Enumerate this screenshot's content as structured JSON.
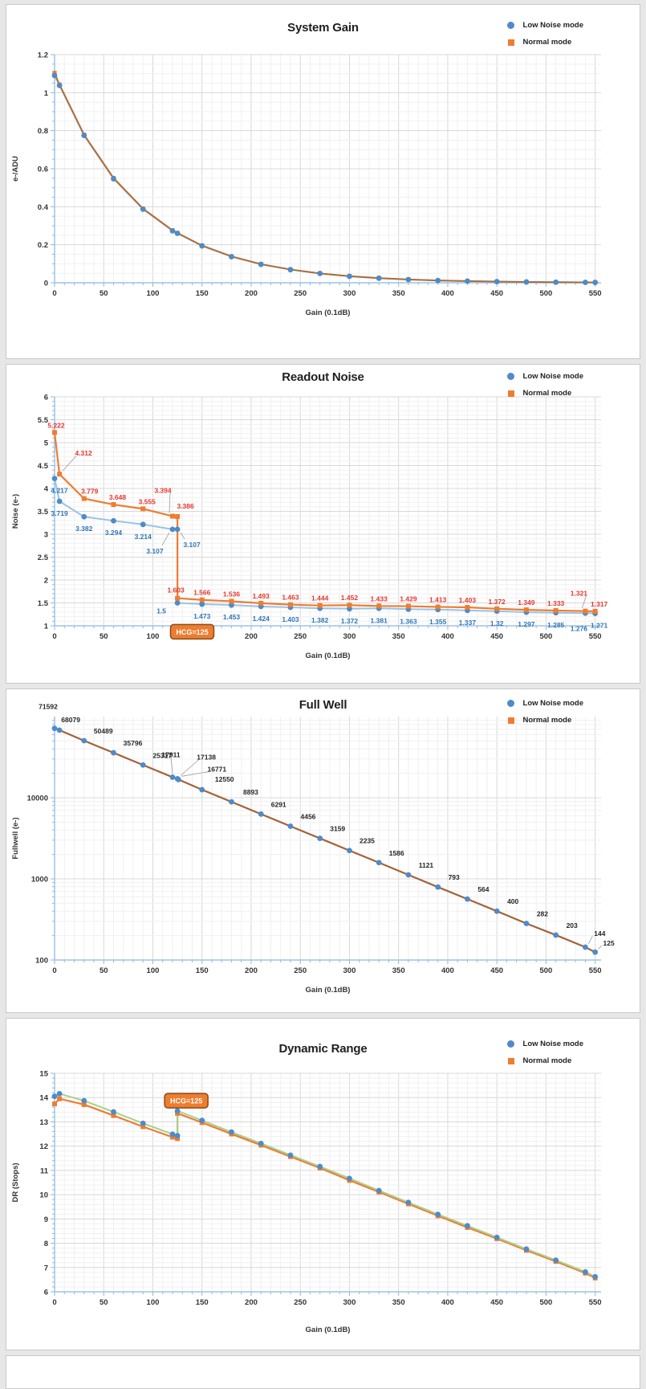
{
  "colors": {
    "low_noise_marker": "#4e8bc8",
    "normal_marker": "#ed7d31",
    "readout_low_line": "#9cc3e5",
    "dr_low_line": "#a9d08e",
    "overlap_line_brown": "#c87a3e",
    "red_label": "#e7362e",
    "blue_label": "#2e75b6",
    "black_label": "#262626"
  },
  "chart_data": [
    {
      "type": "line",
      "title": "System Gain",
      "xlabel": "Gain (0.1dB)",
      "ylabel": "e-/ADU",
      "legend": {
        "low": "Low Noise mode",
        "normal": "Normal mode"
      },
      "xlim": [
        0,
        556
      ],
      "xmajor": 50,
      "xminor": 10,
      "xtick_max": 550,
      "ylim": [
        0,
        1.2
      ],
      "ymajor": 0.2,
      "yminor": 0.05,
      "plot": {
        "l": 60,
        "t": 62,
        "r": 741,
        "b": 346
      },
      "xtitle_dy": 40,
      "series": [
        {
          "name": "Normal mode",
          "marker": "square",
          "ms": 2.6,
          "mcolor": "#ed7d31",
          "line": "#c87a3e",
          "lw": 2,
          "x": [
            0,
            5,
            30,
            60,
            90,
            120,
            125,
            150,
            180,
            210,
            240,
            270,
            300,
            330,
            360,
            390,
            420,
            450,
            480,
            510,
            540,
            550
          ],
          "y": [
            1.104,
            1.043,
            0.779,
            0.551,
            0.39,
            0.276,
            0.262,
            0.196,
            0.139,
            0.098,
            0.07,
            0.049,
            0.035,
            0.025,
            0.0176,
            0.0124,
            0.0088,
            0.0062,
            0.0044,
            0.0031,
            0.0022,
            0.002
          ]
        },
        {
          "name": "Low Noise mode",
          "marker": "circle",
          "mcolor": "#4e8bc8",
          "line": "rgba(110,90,75,0.4)",
          "lw": 2,
          "x": [
            0,
            5,
            30,
            60,
            90,
            120,
            125,
            150,
            180,
            210,
            240,
            270,
            300,
            330,
            360,
            390,
            420,
            450,
            480,
            510,
            540,
            550
          ],
          "y": [
            1.09,
            1.038,
            0.775,
            0.547,
            0.387,
            0.273,
            0.26,
            0.194,
            0.137,
            0.097,
            0.069,
            0.049,
            0.034,
            0.024,
            0.017,
            0.012,
            0.0087,
            0.0061,
            0.0044,
            0.0031,
            0.0022,
            0.0019
          ]
        }
      ]
    },
    {
      "type": "line",
      "title": "Readout Noise",
      "xlabel": "Gain (0.1dB)",
      "ylabel": "Noise (e-)",
      "legend": {
        "low": "Low Noise mode",
        "normal": "Normal mode"
      },
      "xlim": [
        0,
        556
      ],
      "xmajor": 50,
      "xminor": 10,
      "xtick_max": 550,
      "ylim": [
        1,
        6
      ],
      "ymajor": 0.5,
      "yminor": 0.1,
      "plot": {
        "l": 60,
        "t": 40,
        "r": 741,
        "b": 325
      },
      "xtitle_dy": 40,
      "annotation": {
        "text": "HCG=125",
        "x": 140,
        "y": 0.87
      },
      "series": [
        {
          "name": "Low Noise mode",
          "marker": "circle",
          "mcolor": "#4e8bc8",
          "line": "#9cc3e5",
          "lw": 2,
          "labelColor": "#2e75b6",
          "x": [
            0,
            5,
            30,
            60,
            90,
            120,
            125,
            125,
            150,
            180,
            210,
            240,
            270,
            300,
            330,
            360,
            390,
            420,
            450,
            480,
            510,
            540,
            550
          ],
          "y": [
            4.217,
            3.719,
            3.382,
            3.294,
            3.214,
            3.107,
            3.107,
            1.5,
            1.473,
            1.453,
            1.424,
            1.403,
            1.382,
            1.372,
            1.381,
            1.363,
            1.355,
            1.337,
            1.32,
            1.297,
            1.285,
            1.276,
            1.271
          ],
          "labels": [
            {
              "t": "4.217",
              "dx": 6,
              "dy": 15
            },
            {
              "t": "3.719",
              "dx": 0,
              "dy": 15
            },
            {
              "t": "3.382",
              "dx": 0,
              "dy": 15
            },
            {
              "t": "3.294",
              "dx": 0,
              "dy": 15
            },
            {
              "t": "3.214",
              "dx": 0,
              "dy": 15
            },
            {
              "t": "3.107",
              "dx": -22,
              "dy": 27,
              "ld": true
            },
            {
              "t": "3.107",
              "dx": 18,
              "dy": 19,
              "ld": true
            },
            {
              "t": "1.5",
              "dx": -20,
              "dy": 10
            },
            {
              "t": "1.473",
              "dx": 0,
              "dy": 15
            },
            {
              "t": "1.453",
              "dx": 0,
              "dy": 15
            },
            {
              "t": "1.424",
              "dx": 0,
              "dy": 15
            },
            {
              "t": "1.403",
              "dx": 0,
              "dy": 15
            },
            {
              "t": "1.382",
              "dx": 0,
              "dy": 15
            },
            {
              "t": "1.372",
              "dx": 0,
              "dy": 15
            },
            {
              "t": "1.381",
              "dx": 0,
              "dy": 15
            },
            {
              "t": "1.363",
              "dx": 0,
              "dy": 15
            },
            {
              "t": "1.355",
              "dx": 0,
              "dy": 15
            },
            {
              "t": "1.337",
              "dx": 0,
              "dy": 15
            },
            {
              "t": "1.32",
              "dx": 0,
              "dy": 15
            },
            {
              "t": "1.297",
              "dx": 0,
              "dy": 15
            },
            {
              "t": "1.285",
              "dx": 0,
              "dy": 15
            },
            {
              "t": "1.276",
              "dx": -8,
              "dy": 19
            },
            {
              "t": "1.271",
              "dx": 5,
              "dy": 15
            }
          ]
        },
        {
          "name": "Normal mode",
          "marker": "square",
          "ms": 3,
          "mcolor": "#ed7d31",
          "line": "#ed7d31",
          "lw": 2.2,
          "labelColor": "#e7362e",
          "x": [
            0,
            5,
            30,
            60,
            90,
            120,
            125,
            125,
            150,
            180,
            210,
            240,
            270,
            300,
            330,
            360,
            390,
            420,
            450,
            480,
            510,
            540,
            550
          ],
          "y": [
            5.222,
            4.312,
            3.779,
            3.648,
            3.555,
            3.394,
            3.386,
            1.603,
            1.566,
            1.536,
            1.493,
            1.463,
            1.444,
            1.452,
            1.433,
            1.429,
            1.413,
            1.403,
            1.372,
            1.349,
            1.333,
            1.321,
            1.317
          ],
          "labels": [
            {
              "t": "5.222",
              "dx": 2,
              "dy": -9
            },
            {
              "t": "4.312",
              "dx": 30,
              "dy": -26,
              "ld": true
            },
            {
              "t": "3.779",
              "dx": 7,
              "dy": -9
            },
            {
              "t": "3.648",
              "dx": 5,
              "dy": -9
            },
            {
              "t": "3.555",
              "dx": 5,
              "dy": -9
            },
            {
              "t": "3.394",
              "dx": -12,
              "dy": -32,
              "ld": true
            },
            {
              "t": "3.386",
              "dx": 10,
              "dy": -13
            },
            {
              "t": "1.603",
              "dx": -2,
              "dy": -10
            },
            {
              "t": "1.566",
              "dx": 0,
              "dy": -9
            },
            {
              "t": "1.536",
              "dx": 0,
              "dy": -9
            },
            {
              "t": "1.493",
              "dx": 0,
              "dy": -9
            },
            {
              "t": "1.463",
              "dx": 0,
              "dy": -9
            },
            {
              "t": "1.444",
              "dx": 0,
              "dy": -9
            },
            {
              "t": "1.452",
              "dx": 0,
              "dy": -9
            },
            {
              "t": "1.433",
              "dx": 0,
              "dy": -9
            },
            {
              "t": "1.429",
              "dx": 0,
              "dy": -9
            },
            {
              "t": "1.413",
              "dx": 0,
              "dy": -9
            },
            {
              "t": "1.403",
              "dx": 0,
              "dy": -9
            },
            {
              "t": "1.372",
              "dx": 0,
              "dy": -9
            },
            {
              "t": "1.349",
              "dx": 0,
              "dy": -9
            },
            {
              "t": "1.333",
              "dx": 0,
              "dy": -9
            },
            {
              "t": "1.321",
              "dx": -8,
              "dy": -22,
              "ld": true
            },
            {
              "t": "1.317",
              "dx": 5,
              "dy": -9
            }
          ]
        }
      ]
    },
    {
      "type": "line",
      "title": "Full Well",
      "xlabel": "Gain (0.1dB)",
      "ylabel": "Fullwell (e-)",
      "legend": {
        "low": "Low Noise mode",
        "normal": "Normal mode"
      },
      "xlim": [
        0,
        556
      ],
      "xmajor": 50,
      "xminor": 10,
      "xtick_max": 550,
      "ylim": [
        100,
        100000
      ],
      "ylog": true,
      "plot": {
        "l": 60,
        "t": 34,
        "r": 741,
        "b": 337
      },
      "xtitle_dy": 40,
      "series": [
        {
          "name": "Normal mode",
          "marker": "square",
          "ms": 2.2,
          "mcolor": "#ed7d31",
          "line": "#bd6a35",
          "lw": 2.2,
          "x": [
            0,
            5,
            30,
            60,
            90,
            120,
            125,
            126,
            150,
            180,
            210,
            240,
            270,
            300,
            330,
            360,
            390,
            420,
            450,
            480,
            510,
            540,
            550
          ],
          "y": [
            71592,
            68079,
            50489,
            35796,
            25317,
            17911,
            17138,
            16771,
            12550,
            8893,
            6291,
            4456,
            3159,
            2235,
            1586,
            1121,
            793,
            564,
            400,
            282,
            203,
            144,
            125
          ]
        },
        {
          "name": "Low Noise mode",
          "marker": "circle",
          "mcolor": "#4e8bc8",
          "line": "rgba(110,90,75,0.35)",
          "lw": 2,
          "labelColor": "#262626",
          "x": [
            0,
            5,
            30,
            60,
            90,
            120,
            125,
            126,
            150,
            180,
            210,
            240,
            270,
            300,
            330,
            360,
            390,
            420,
            450,
            480,
            510,
            540,
            550
          ],
          "y": [
            71592,
            68079,
            50489,
            35796,
            25317,
            17911,
            17138,
            16771,
            12550,
            8893,
            6291,
            4456,
            3159,
            2235,
            1586,
            1121,
            793,
            564,
            400,
            282,
            203,
            144,
            125
          ],
          "labels": [
            {
              "t": "71592",
              "dx": -8,
              "dy": -27
            },
            {
              "t": "68079",
              "dx": 14,
              "dy": -13
            },
            {
              "t": "50489",
              "dx": 24,
              "dy": -12
            },
            {
              "t": "35796",
              "dx": 24,
              "dy": -12
            },
            {
              "t": "25317",
              "dx": 24,
              "dy": -12
            },
            {
              "t": "17911",
              "dx": -2,
              "dy": -28,
              "ld": true
            },
            {
              "t": "17138",
              "dx": 36,
              "dy": -27,
              "ld": true
            },
            {
              "t": "16771",
              "dx": 48,
              "dy": -13,
              "ld": true
            },
            {
              "t": "12550",
              "dx": 28,
              "dy": -13
            },
            {
              "t": "8893",
              "dx": 24,
              "dy": -12
            },
            {
              "t": "6291",
              "dx": 22,
              "dy": -12
            },
            {
              "t": "4456",
              "dx": 22,
              "dy": -12
            },
            {
              "t": "3159",
              "dx": 22,
              "dy": -12
            },
            {
              "t": "2235",
              "dx": 22,
              "dy": -12
            },
            {
              "t": "1586",
              "dx": 22,
              "dy": -12
            },
            {
              "t": "1121",
              "dx": 22,
              "dy": -12
            },
            {
              "t": "793",
              "dx": 20,
              "dy": -12
            },
            {
              "t": "564",
              "dx": 20,
              "dy": -12
            },
            {
              "t": "400",
              "dx": 20,
              "dy": -12
            },
            {
              "t": "282",
              "dx": 20,
              "dy": -12
            },
            {
              "t": "203",
              "dx": 20,
              "dy": -12
            },
            {
              "t": "144",
              "dx": 18,
              "dy": -17,
              "ld": true
            },
            {
              "t": "125",
              "dx": 17,
              "dy": -11,
              "ld": true
            }
          ]
        }
      ]
    },
    {
      "type": "line",
      "title": "Dynamic Range",
      "xlabel": "Gain (0.1dB)",
      "ylabel": "DR (Stops)",
      "legend": {
        "low": "Low Noise mode",
        "normal": "Normal mode"
      },
      "xlim": [
        0,
        556
      ],
      "xmajor": 50,
      "xminor": 10,
      "xtick_max": 550,
      "ylim": [
        6,
        15
      ],
      "ymajor": 1,
      "yminor": 0.2,
      "plot": {
        "l": 60,
        "t": 68,
        "r": 741,
        "b": 340
      },
      "xtitle_dy": 50,
      "annotation": {
        "text": "HCG=125",
        "x": 134,
        "y": 13.87
      },
      "series": [
        {
          "name": "Normal mode",
          "marker": "square",
          "ms": 3,
          "mcolor": "#ed7d31",
          "line": "#ed7d31",
          "lw": 2.2,
          "x": [
            0,
            5,
            30,
            60,
            90,
            120,
            125,
            125,
            150,
            180,
            210,
            240,
            270,
            300,
            330,
            360,
            390,
            420,
            450,
            480,
            510,
            540,
            550
          ],
          "y": [
            13.74,
            13.95,
            13.71,
            13.26,
            12.8,
            12.37,
            12.31,
            13.35,
            12.97,
            12.5,
            12.04,
            11.57,
            11.1,
            10.59,
            10.11,
            9.62,
            9.13,
            8.65,
            8.19,
            7.71,
            7.25,
            6.77,
            6.57
          ]
        },
        {
          "name": "Low Noise mode",
          "marker": "circle",
          "mcolor": "#4e8bc8",
          "line": "#a9d08e",
          "lw": 2,
          "x": [
            0,
            5,
            30,
            60,
            90,
            120,
            125,
            125,
            150,
            180,
            210,
            240,
            270,
            300,
            330,
            360,
            390,
            420,
            450,
            480,
            510,
            540,
            550
          ],
          "y": [
            14.05,
            14.16,
            13.87,
            13.41,
            12.94,
            12.49,
            12.43,
            13.45,
            13.06,
            12.58,
            12.11,
            11.63,
            11.16,
            10.67,
            10.17,
            9.68,
            9.19,
            8.72,
            8.24,
            7.76,
            7.3,
            6.82,
            6.62
          ]
        }
      ]
    }
  ]
}
